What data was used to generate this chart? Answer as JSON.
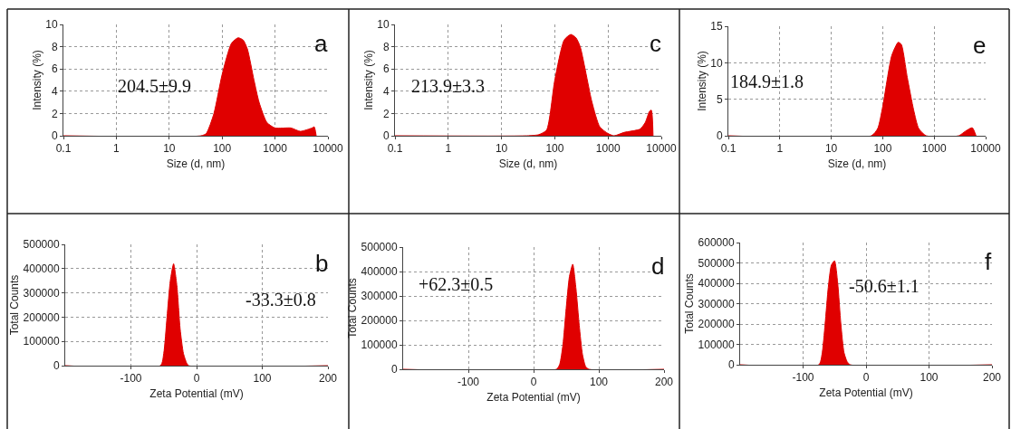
{
  "chart_data": [
    {
      "type": "area",
      "xlabel": "Size (d, nm)",
      "ylabel": "Intensity (%)",
      "annotations": [
        "204.5±9.9",
        "a"
      ],
      "log": "x",
      "grid": true,
      "xlim": [
        0.1,
        10000
      ],
      "xticks": [
        0.1,
        1,
        10,
        100,
        1000,
        10000
      ],
      "ylim": [
        0,
        10
      ],
      "yticks": [
        0,
        2,
        4,
        6,
        8,
        10
      ],
      "series": [
        {
          "color": "#e00000",
          "x": [
            0.1,
            40,
            50,
            70,
            100,
            150,
            200,
            250,
            300,
            400,
            500,
            700,
            1000,
            2000,
            3000,
            5000,
            5500,
            6000
          ],
          "values": [
            0,
            0,
            0.2,
            2,
            5.5,
            8.3,
            8.8,
            8.6,
            7.8,
            5,
            3,
            1.2,
            0.7,
            0.7,
            0.4,
            0.7,
            0.8,
            0
          ]
        }
      ]
    },
    {
      "type": "area",
      "xlabel": "Size (d, nm)",
      "ylabel": "Intensity (%)",
      "annotations": [
        "213.9±3.3",
        "c"
      ],
      "log": "x",
      "grid": true,
      "xlim": [
        0.1,
        10000
      ],
      "xticks": [
        0.1,
        1,
        10,
        100,
        1000,
        10000
      ],
      "ylim": [
        0,
        10
      ],
      "yticks": [
        0,
        2,
        4,
        6,
        8,
        10
      ],
      "series": [
        {
          "color": "#e00000",
          "x": [
            0.1,
            30,
            50,
            70,
            100,
            150,
            200,
            250,
            300,
            500,
            700,
            1000,
            1300,
            2000,
            4000,
            5000,
            6000,
            6500,
            7000
          ],
          "values": [
            0,
            0,
            0.1,
            0.5,
            5,
            8.6,
            9.1,
            8.8,
            8,
            3,
            0.8,
            0.2,
            0,
            0.3,
            0.6,
            1.2,
            2.2,
            2.3,
            0
          ]
        }
      ]
    },
    {
      "type": "area",
      "xlabel": "Size (d, nm)",
      "ylabel": "Intensity (%)",
      "annotations": [
        "184.9±1.8",
        "e"
      ],
      "log": "x",
      "grid": true,
      "xlim": [
        0.1,
        10000
      ],
      "xticks": [
        0.1,
        1,
        10,
        100,
        1000,
        10000
      ],
      "ylim": [
        0,
        15
      ],
      "yticks": [
        0,
        5,
        10,
        15
      ],
      "series": [
        {
          "color": "#e00000",
          "x": [
            0.1,
            60,
            80,
            100,
            150,
            200,
            230,
            300,
            400,
            500,
            700,
            3000,
            4000,
            5500,
            6500
          ],
          "values": [
            0,
            0,
            1,
            4,
            11,
            12.8,
            12.5,
            8,
            3.5,
            1,
            0,
            0,
            0.6,
            1.1,
            0
          ]
        }
      ]
    },
    {
      "type": "area",
      "xlabel": "Zeta Potential (mV)",
      "ylabel": "Total Counts",
      "annotations": [
        "-33.3±0.8",
        "b"
      ],
      "grid": true,
      "xlim": [
        -200,
        200
      ],
      "xticks": [
        -100,
        0,
        100,
        200
      ],
      "ylim": [
        0,
        500000
      ],
      "yticks": [
        0,
        100000,
        200000,
        300000,
        400000,
        500000
      ],
      "series": [
        {
          "color": "#e00000",
          "x": [
            -200,
            -55,
            -50,
            -45,
            -40,
            -35,
            -30,
            -25,
            -20,
            -15,
            -12,
            200
          ],
          "values": [
            0,
            0,
            50000,
            200000,
            350000,
            420000,
            330000,
            150000,
            50000,
            10000,
            0,
            0
          ]
        }
      ]
    },
    {
      "type": "area",
      "xlabel": "Zeta Potential (mV)",
      "ylabel": "Total Counts",
      "annotations": [
        "+62.3±0.5",
        "d"
      ],
      "grid": true,
      "xlim": [
        -200,
        200
      ],
      "xticks": [
        -100,
        0,
        100,
        200
      ],
      "ylim": [
        0,
        500000
      ],
      "yticks": [
        0,
        100000,
        200000,
        300000,
        400000,
        500000
      ],
      "series": [
        {
          "color": "#e00000",
          "x": [
            -200,
            35,
            40,
            45,
            50,
            55,
            60,
            65,
            70,
            75,
            80,
            85,
            200
          ],
          "values": [
            0,
            0,
            20000,
            100000,
            250000,
            380000,
            430000,
            330000,
            180000,
            60000,
            10000,
            0,
            0
          ]
        }
      ]
    },
    {
      "type": "area",
      "xlabel": "Zeta Potential (mV)",
      "ylabel": "Total Counts",
      "annotations": [
        "-50.6±1.1",
        "f"
      ],
      "grid": true,
      "xlim": [
        -200,
        200
      ],
      "xticks": [
        -100,
        0,
        100,
        200
      ],
      "ylim": [
        0,
        600000
      ],
      "yticks": [
        0,
        100000,
        200000,
        300000,
        400000,
        500000,
        600000
      ],
      "series": [
        {
          "color": "#e00000",
          "x": [
            -200,
            -75,
            -70,
            -65,
            -60,
            -55,
            -50,
            -45,
            -40,
            -35,
            -30,
            -25,
            200
          ],
          "values": [
            0,
            0,
            50000,
            200000,
            380000,
            490000,
            510000,
            400000,
            200000,
            60000,
            15000,
            0,
            0
          ]
        }
      ]
    }
  ]
}
